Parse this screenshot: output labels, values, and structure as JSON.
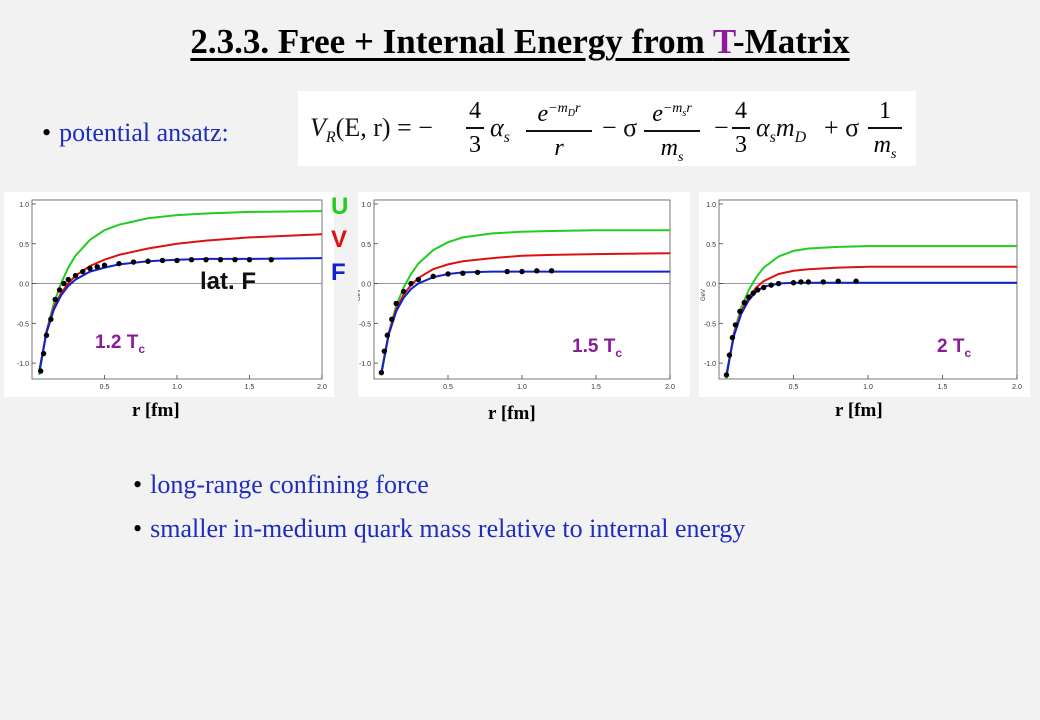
{
  "title": {
    "prefix": "2.3.3. Free + Internal Energy from ",
    "letter": "T",
    "suffix": "-Matrix"
  },
  "bullets": {
    "ansatz": "potential ansatz:",
    "b1": "long-range confining force",
    "b2": "smaller in-medium quark mass relative to internal energy"
  },
  "formula": {
    "lhs": "V",
    "lhs_sub": "R",
    "lhs_args": "(E, r) = −",
    "c1_num": "4",
    "c1_den": "3",
    "alpha": "α",
    "alpha_sub": "s",
    "frac1_num": "e",
    "frac1_exp": "−m",
    "frac1_exp_sub": "D",
    "frac1_exp_r": "r",
    "frac1_den": "r",
    "minus_sigma": "− σ",
    "frac2_num": "e",
    "frac2_exp": "−m",
    "frac2_exp_sub": "s",
    "frac2_exp_r": "r",
    "frac2_den": "m",
    "frac2_den_sub": "s",
    "minus2": "−",
    "c2_num": "4",
    "c2_den": "3",
    "alpha2": "α",
    "alpha2_sub": "s",
    "m2": "m",
    "m2_sub": "D",
    "plus_sigma": "+ σ",
    "frac3_num": "1",
    "frac3_den": "m",
    "frac3_den_sub": "s"
  },
  "legend": {
    "U": "U",
    "V": "V",
    "F": "F",
    "latF": "lat. F",
    "colors": {
      "U": "#22cc22",
      "V": "#dd1111",
      "F": "#1122cc"
    }
  },
  "panels": [
    {
      "temp": "1.2 T",
      "temp_sub": "c",
      "xlabel": "r [fm]"
    },
    {
      "temp": "1.5 T",
      "temp_sub": "c",
      "xlabel": "r [fm]"
    },
    {
      "temp": "2 T",
      "temp_sub": "c",
      "xlabel": "r [fm]"
    }
  ],
  "chart_data": [
    {
      "type": "line",
      "xlim": [
        0,
        2.0
      ],
      "ylim": [
        -1.2,
        1.05
      ],
      "x_ticks": [
        "0.5",
        "1.0",
        "1.5",
        "2.0"
      ],
      "y_ticks": [
        "1.0",
        "0.5",
        "0.0",
        "-0.5",
        "-1.0"
      ],
      "series": [
        {
          "name": "U",
          "color": "#22cc22",
          "x": [
            0.05,
            0.1,
            0.15,
            0.2,
            0.25,
            0.3,
            0.4,
            0.5,
            0.6,
            0.8,
            1.0,
            1.2,
            1.5,
            2.0
          ],
          "y": [
            -1.15,
            -0.6,
            -0.25,
            0.0,
            0.2,
            0.35,
            0.55,
            0.67,
            0.74,
            0.82,
            0.86,
            0.88,
            0.9,
            0.91
          ]
        },
        {
          "name": "V",
          "color": "#dd1111",
          "x": [
            0.05,
            0.1,
            0.15,
            0.2,
            0.25,
            0.3,
            0.4,
            0.5,
            0.6,
            0.8,
            1.0,
            1.2,
            1.5,
            2.0
          ],
          "y": [
            -1.1,
            -0.6,
            -0.3,
            -0.12,
            0.0,
            0.1,
            0.22,
            0.3,
            0.36,
            0.44,
            0.5,
            0.54,
            0.58,
            0.62
          ]
        },
        {
          "name": "F",
          "color": "#1122cc",
          "x": [
            0.05,
            0.1,
            0.15,
            0.2,
            0.25,
            0.3,
            0.4,
            0.5,
            0.6,
            0.8,
            1.0,
            1.2,
            1.5,
            2.0
          ],
          "y": [
            -1.1,
            -0.62,
            -0.33,
            -0.15,
            -0.03,
            0.05,
            0.15,
            0.2,
            0.24,
            0.28,
            0.3,
            0.31,
            0.31,
            0.32
          ]
        },
        {
          "name": "lat. F",
          "markers": true,
          "x": [
            0.06,
            0.08,
            0.1,
            0.13,
            0.16,
            0.19,
            0.22,
            0.25,
            0.3,
            0.35,
            0.4,
            0.45,
            0.5,
            0.6,
            0.7,
            0.8,
            0.9,
            1.0,
            1.1,
            1.2,
            1.3,
            1.4,
            1.5,
            1.65
          ],
          "y": [
            -1.1,
            -0.88,
            -0.65,
            -0.45,
            -0.2,
            -0.08,
            0.0,
            0.05,
            0.1,
            0.15,
            0.19,
            0.21,
            0.23,
            0.25,
            0.27,
            0.28,
            0.29,
            0.29,
            0.3,
            0.3,
            0.3,
            0.3,
            0.3,
            0.3
          ]
        }
      ]
    },
    {
      "type": "line",
      "xlim": [
        0,
        2.0
      ],
      "ylim": [
        -1.2,
        1.05
      ],
      "x_ticks": [
        "0.5",
        "1.0",
        "1.5",
        "2.0"
      ],
      "y_ticks": [
        "1.0",
        "0.5",
        "0.0",
        "-0.5",
        "-1.0"
      ],
      "ylabel": "GeV",
      "series": [
        {
          "name": "U",
          "color": "#22cc22",
          "x": [
            0.05,
            0.1,
            0.15,
            0.2,
            0.25,
            0.3,
            0.4,
            0.5,
            0.6,
            0.8,
            1.0,
            1.2,
            1.5,
            2.0
          ],
          "y": [
            -1.15,
            -0.62,
            -0.28,
            -0.05,
            0.12,
            0.25,
            0.42,
            0.52,
            0.58,
            0.63,
            0.65,
            0.66,
            0.67,
            0.67
          ]
        },
        {
          "name": "V",
          "color": "#dd1111",
          "x": [
            0.05,
            0.1,
            0.15,
            0.2,
            0.25,
            0.3,
            0.4,
            0.5,
            0.6,
            0.8,
            1.0,
            1.2,
            1.5,
            2.0
          ],
          "y": [
            -1.12,
            -0.62,
            -0.32,
            -0.14,
            -0.02,
            0.07,
            0.18,
            0.24,
            0.28,
            0.32,
            0.35,
            0.36,
            0.37,
            0.38
          ]
        },
        {
          "name": "F",
          "color": "#1122cc",
          "x": [
            0.05,
            0.1,
            0.15,
            0.2,
            0.25,
            0.3,
            0.4,
            0.5,
            0.6,
            0.8,
            1.0,
            1.2,
            1.5,
            2.0
          ],
          "y": [
            -1.12,
            -0.64,
            -0.35,
            -0.18,
            -0.07,
            0.0,
            0.08,
            0.12,
            0.14,
            0.15,
            0.15,
            0.15,
            0.15,
            0.15
          ]
        },
        {
          "name": "lat. F",
          "markers": true,
          "x": [
            0.05,
            0.07,
            0.09,
            0.12,
            0.15,
            0.2,
            0.25,
            0.3,
            0.4,
            0.5,
            0.6,
            0.7,
            0.9,
            1.0,
            1.1,
            1.2
          ],
          "y": [
            -1.12,
            -0.85,
            -0.65,
            -0.45,
            -0.25,
            -0.1,
            0.0,
            0.05,
            0.09,
            0.12,
            0.13,
            0.14,
            0.15,
            0.15,
            0.16,
            0.16
          ]
        }
      ]
    },
    {
      "type": "line",
      "xlim": [
        0,
        2.0
      ],
      "ylim": [
        -1.2,
        1.05
      ],
      "x_ticks": [
        "0.5",
        "1.0",
        "1.5",
        "2.0"
      ],
      "y_ticks": [
        "1.0",
        "0.5",
        "0.0",
        "-0.5",
        "-1.0"
      ],
      "ylabel": "GeV",
      "series": [
        {
          "name": "U",
          "color": "#22cc22",
          "x": [
            0.05,
            0.1,
            0.15,
            0.2,
            0.25,
            0.3,
            0.4,
            0.5,
            0.6,
            0.8,
            1.0,
            1.2,
            1.5,
            2.0
          ],
          "y": [
            -1.2,
            -0.62,
            -0.3,
            -0.08,
            0.08,
            0.2,
            0.34,
            0.41,
            0.44,
            0.46,
            0.47,
            0.47,
            0.47,
            0.47
          ]
        },
        {
          "name": "V",
          "color": "#dd1111",
          "x": [
            0.05,
            0.1,
            0.15,
            0.2,
            0.25,
            0.3,
            0.4,
            0.5,
            0.6,
            0.8,
            1.0,
            1.2,
            1.5,
            2.0
          ],
          "y": [
            -1.15,
            -0.64,
            -0.35,
            -0.17,
            -0.05,
            0.03,
            0.12,
            0.16,
            0.18,
            0.2,
            0.21,
            0.21,
            0.21,
            0.21
          ]
        },
        {
          "name": "F",
          "color": "#1122cc",
          "x": [
            0.05,
            0.1,
            0.15,
            0.2,
            0.25,
            0.3,
            0.4,
            0.5,
            0.6,
            0.8,
            1.0,
            1.2,
            1.5,
            2.0
          ],
          "y": [
            -1.15,
            -0.66,
            -0.38,
            -0.21,
            -0.1,
            -0.04,
            0.0,
            0.01,
            0.01,
            0.01,
            0.01,
            0.01,
            0.01,
            0.01
          ]
        },
        {
          "name": "lat. F",
          "markers": true,
          "x": [
            0.05,
            0.07,
            0.09,
            0.11,
            0.14,
            0.17,
            0.2,
            0.23,
            0.26,
            0.3,
            0.35,
            0.4,
            0.5,
            0.55,
            0.6,
            0.7,
            0.8,
            0.92
          ],
          "y": [
            -1.15,
            -0.9,
            -0.68,
            -0.52,
            -0.35,
            -0.24,
            -0.17,
            -0.12,
            -0.08,
            -0.05,
            -0.02,
            0.0,
            0.01,
            0.02,
            0.02,
            0.02,
            0.03,
            0.03
          ]
        }
      ]
    }
  ]
}
